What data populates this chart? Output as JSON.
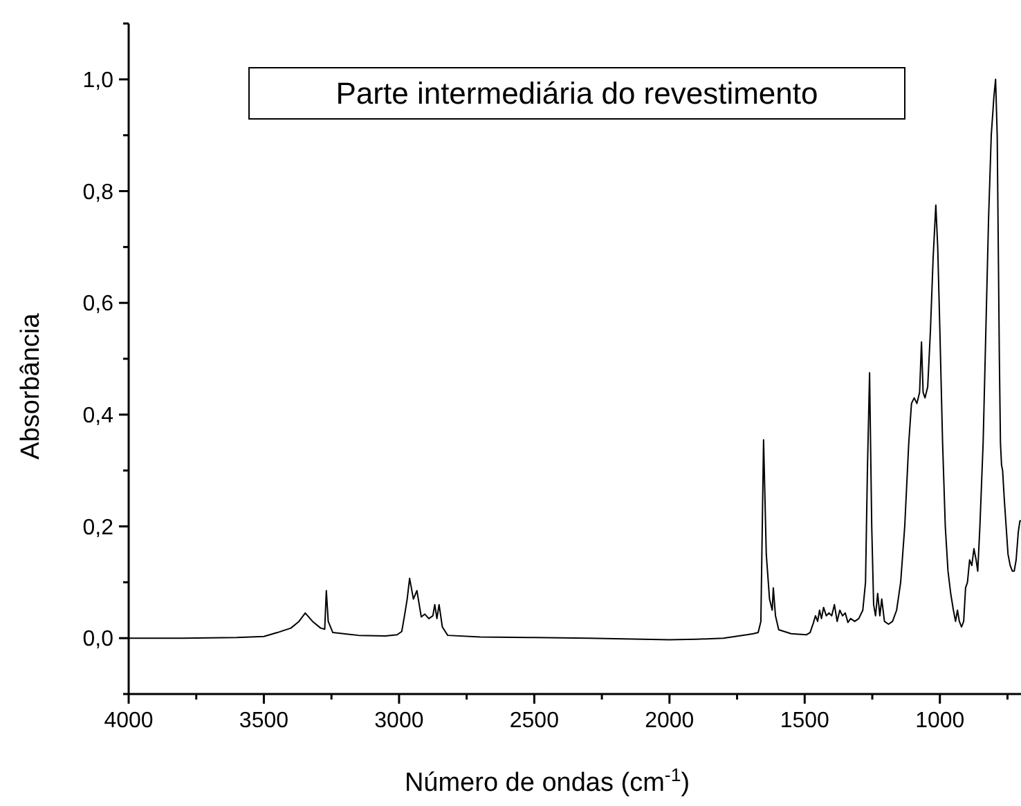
{
  "chart_data": {
    "type": "line",
    "title": "Parte intermediária do revestimento",
    "xlabel": "Número de ondas (cm$^{-1}$)",
    "ylabel": "Absorbância",
    "xlim": [
      4000,
      700
    ],
    "ylim": [
      -0.1,
      1.1
    ],
    "xticks": [
      4000,
      {
        "value": 3750,
        "label": null
      },
      3500,
      {
        "value": 3250,
        "label": null
      },
      3000,
      {
        "value": 2750,
        "label": null
      },
      2500,
      {
        "value": 2250,
        "label": null
      },
      2000,
      {
        "value": 1750,
        "label": null
      },
      1500,
      {
        "value": 1250,
        "label": null
      },
      1000,
      {
        "value": 750,
        "label": null
      }
    ],
    "yticks": [
      {
        "value": -0.1,
        "label": null
      },
      {
        "value": 0,
        "label": "0,0"
      },
      {
        "value": 0.1,
        "label": null
      },
      {
        "value": 0.2,
        "label": "0,2"
      },
      {
        "value": 0.3,
        "label": null
      },
      {
        "value": 0.4,
        "label": "0,4"
      },
      {
        "value": 0.5,
        "label": null
      },
      {
        "value": 0.6,
        "label": "0,6"
      },
      {
        "value": 0.7,
        "label": null
      },
      {
        "value": 0.8,
        "label": "0,8"
      },
      {
        "value": 0.9,
        "label": null
      },
      {
        "value": 1.0,
        "label": "1,0"
      },
      {
        "value": 1.1,
        "label": null
      }
    ],
    "grid": false,
    "series": [
      {
        "color": "#000000",
        "x": [
          4000,
          3800,
          3600,
          3500,
          3450,
          3400,
          3370,
          3347,
          3320,
          3290,
          3275,
          3269,
          3262,
          3245,
          3150,
          3050,
          3007,
          2990,
          2980,
          2970,
          2961,
          2947,
          2934,
          2918,
          2905,
          2890,
          2875,
          2868,
          2860,
          2852,
          2840,
          2820,
          2700,
          2500,
          2300,
          2100,
          2000,
          1900,
          1800,
          1714,
          1690,
          1672,
          1662,
          1652,
          1642,
          1630,
          1620,
          1616,
          1608,
          1596,
          1550,
          1494,
          1480,
          1468,
          1460,
          1452,
          1445,
          1438,
          1430,
          1420,
          1410,
          1400,
          1390,
          1380,
          1370,
          1360,
          1350,
          1340,
          1330,
          1315,
          1300,
          1285,
          1275,
          1268,
          1260,
          1252,
          1245,
          1238,
          1230,
          1222,
          1215,
          1205,
          1190,
          1175,
          1160,
          1145,
          1130,
          1115,
          1105,
          1095,
          1085,
          1075,
          1068,
          1062,
          1055,
          1045,
          1035,
          1025,
          1015,
          1008,
          1000,
          990,
          980,
          970,
          960,
          950,
          942,
          935,
          928,
          920,
          912,
          905,
          898,
          890,
          882,
          874,
          866,
          860,
          852,
          840,
          830,
          820,
          810,
          800,
          794,
          788,
          784,
          780,
          776,
          772,
          768,
          762,
          755,
          748,
          740,
          732,
          725,
          718,
          710,
          704,
          700
        ],
        "values": [
          0.0,
          0.0,
          0.001,
          0.003,
          0.01,
          0.018,
          0.03,
          0.045,
          0.03,
          0.018,
          0.016,
          0.085,
          0.03,
          0.01,
          0.005,
          0.004,
          0.006,
          0.012,
          0.04,
          0.07,
          0.107,
          0.07,
          0.085,
          0.038,
          0.043,
          0.035,
          0.04,
          0.06,
          0.035,
          0.06,
          0.02,
          0.005,
          0.002,
          0.001,
          0.0,
          -0.002,
          -0.003,
          -0.002,
          0.0,
          0.006,
          0.008,
          0.01,
          0.03,
          0.355,
          0.15,
          0.07,
          0.05,
          0.09,
          0.04,
          0.015,
          0.008,
          0.006,
          0.01,
          0.027,
          0.04,
          0.03,
          0.05,
          0.035,
          0.055,
          0.04,
          0.045,
          0.04,
          0.06,
          0.03,
          0.05,
          0.04,
          0.045,
          0.028,
          0.035,
          0.03,
          0.035,
          0.05,
          0.1,
          0.3,
          0.475,
          0.2,
          0.06,
          0.04,
          0.08,
          0.04,
          0.07,
          0.03,
          0.025,
          0.03,
          0.05,
          0.1,
          0.2,
          0.35,
          0.42,
          0.43,
          0.42,
          0.44,
          0.53,
          0.44,
          0.43,
          0.45,
          0.55,
          0.68,
          0.775,
          0.7,
          0.55,
          0.35,
          0.2,
          0.12,
          0.08,
          0.05,
          0.03,
          0.05,
          0.03,
          0.02,
          0.03,
          0.09,
          0.1,
          0.14,
          0.13,
          0.16,
          0.14,
          0.12,
          0.2,
          0.35,
          0.55,
          0.75,
          0.9,
          0.97,
          1.0,
          0.9,
          0.7,
          0.5,
          0.35,
          0.31,
          0.3,
          0.25,
          0.2,
          0.15,
          0.13,
          0.12,
          0.12,
          0.14,
          0.19,
          0.21,
          0.21
        ]
      }
    ]
  }
}
